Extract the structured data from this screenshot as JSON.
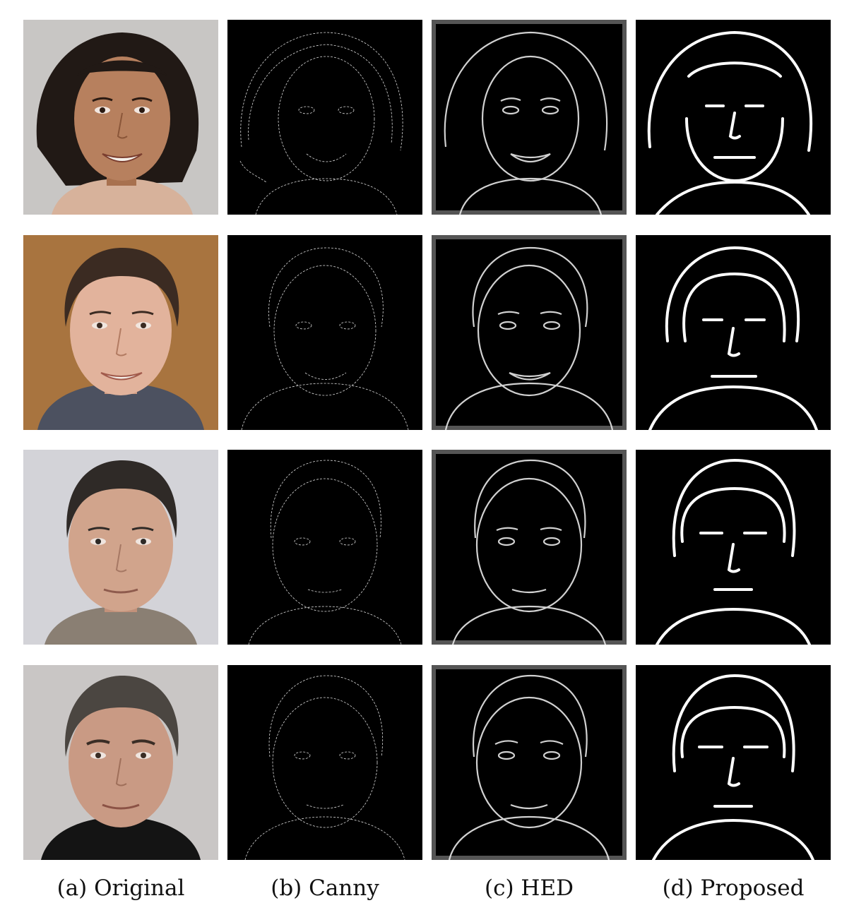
{
  "figure": {
    "columns": [
      {
        "id": "original",
        "caption": "(a) Original"
      },
      {
        "id": "canny",
        "caption": "(b) Canny"
      },
      {
        "id": "hed",
        "caption": "(c) HED"
      },
      {
        "id": "proposed",
        "caption": "(d) Proposed"
      }
    ],
    "rows": [
      {
        "subject": "woman-dark-curly-hair",
        "background": "#c8c6c4",
        "skin": "#b7805e",
        "hair": "#211915",
        "clothing": "#d7b29b"
      },
      {
        "subject": "man-brown-background",
        "background": "#a8743f",
        "skin": "#e2b39c",
        "hair": "#3b2b22",
        "clothing": "#4c5160"
      },
      {
        "subject": "man-stubble",
        "background": "#d3d3d8",
        "skin": "#d1a48c",
        "hair": "#2f2a27",
        "clothing": "#8a7f73"
      },
      {
        "subject": "man-grey-hair",
        "background": "#c9c6c5",
        "skin": "#c99a84",
        "hair": "#4b4641",
        "clothing": "#141414"
      }
    ]
  }
}
